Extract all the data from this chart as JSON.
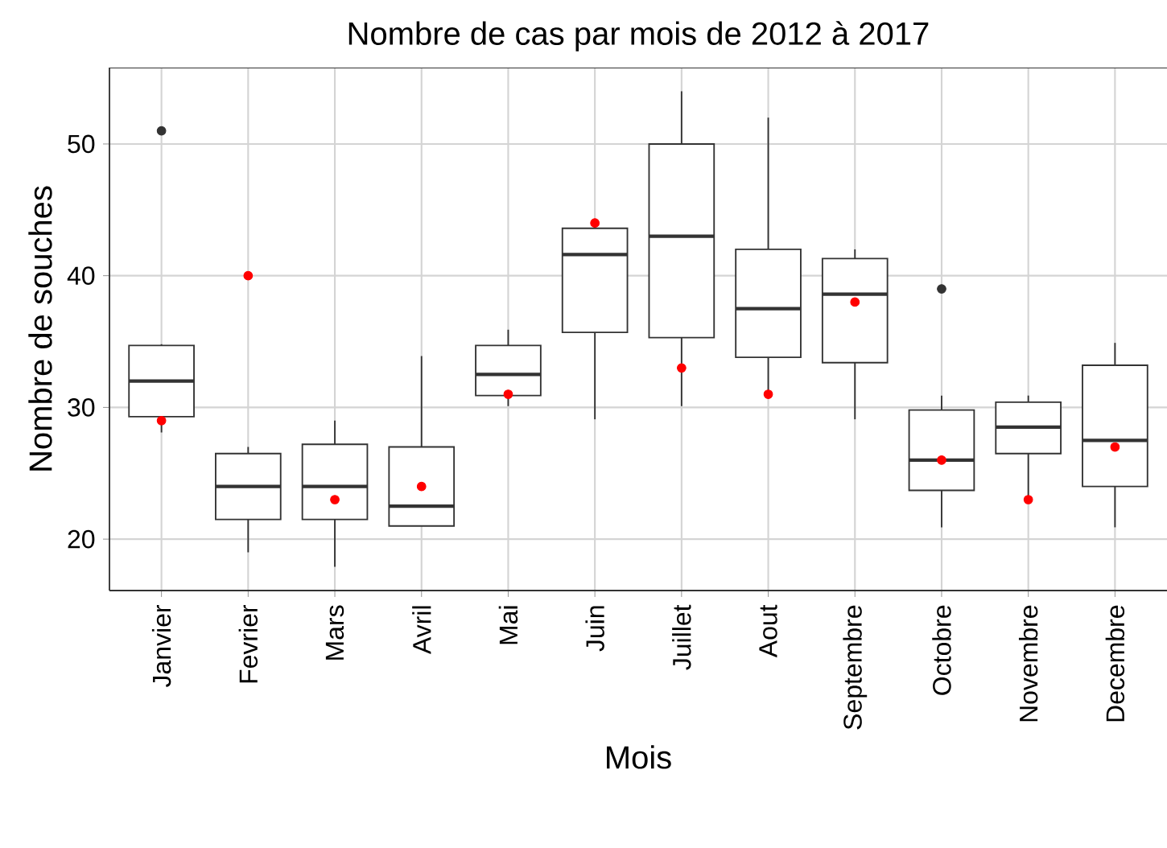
{
  "chart_data": {
    "type": "box",
    "title": "Nombre de cas par mois de 2012 à 2017",
    "xlabel": "Mois",
    "ylabel": "Nombre de souches",
    "categories": [
      "Janvier",
      "Fevrier",
      "Mars",
      "Avril",
      "Mai",
      "Juin",
      "Juillet",
      "Aout",
      "Septembre",
      "Octobre",
      "Novembre",
      "Decembre"
    ],
    "boxes": [
      {
        "low": 28.1,
        "q1": 29.3,
        "median": 32.0,
        "q3": 34.7,
        "high": 34.8,
        "outliers": [
          51
        ]
      },
      {
        "low": 19.0,
        "q1": 21.5,
        "median": 24.0,
        "q3": 26.5,
        "high": 27.0
      },
      {
        "low": 17.9,
        "q1": 21.5,
        "median": 24.0,
        "q3": 27.2,
        "high": 29.0
      },
      {
        "low": 21.0,
        "q1": 21.0,
        "median": 22.5,
        "q3": 27.0,
        "high": 33.9
      },
      {
        "low": 30.1,
        "q1": 30.9,
        "median": 32.5,
        "q3": 34.7,
        "high": 35.9
      },
      {
        "low": 29.1,
        "q1": 35.7,
        "median": 41.6,
        "q3": 43.6,
        "high": 44.0
      },
      {
        "low": 30.1,
        "q1": 35.3,
        "median": 43.0,
        "q3": 50.0,
        "high": 54.0
      },
      {
        "low": 31.0,
        "q1": 33.8,
        "median": 37.5,
        "q3": 42.0,
        "high": 52.0
      },
      {
        "low": 29.1,
        "q1": 33.4,
        "median": 38.6,
        "q3": 41.3,
        "high": 42.0
      },
      {
        "low": 20.9,
        "q1": 23.7,
        "median": 26.0,
        "q3": 29.8,
        "high": 30.9,
        "outliers": [
          39
        ]
      },
      {
        "low": 23.0,
        "q1": 26.5,
        "median": 28.5,
        "q3": 30.4,
        "high": 30.9
      },
      {
        "low": 20.9,
        "q1": 24.0,
        "median": 27.5,
        "q3": 33.2,
        "high": 34.9
      }
    ],
    "color": "#333333",
    "series": [
      {
        "type": "scatter",
        "color": "#ff0000",
        "x": [
          "Janvier",
          "Fevrier",
          "Mars",
          "Avril",
          "Mai",
          "Juin",
          "Juillet",
          "Aout",
          "Septembre",
          "Octobre",
          "Novembre",
          "Decembre"
        ],
        "values": [
          29,
          40,
          23,
          24,
          31,
          44,
          33,
          31,
          38,
          26,
          23,
          27
        ]
      }
    ],
    "ylim": [
      16.1,
      55.8
    ],
    "yticks": [
      20,
      30,
      40,
      50
    ],
    "grid": true
  }
}
